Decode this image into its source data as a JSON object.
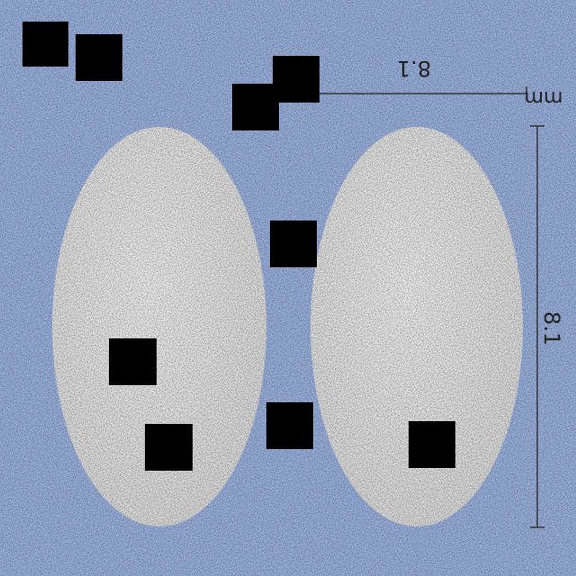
{
  "ruler": {
    "horizontal_label": "8.1",
    "unit": "mm",
    "vertical_label": "8.1"
  }
}
